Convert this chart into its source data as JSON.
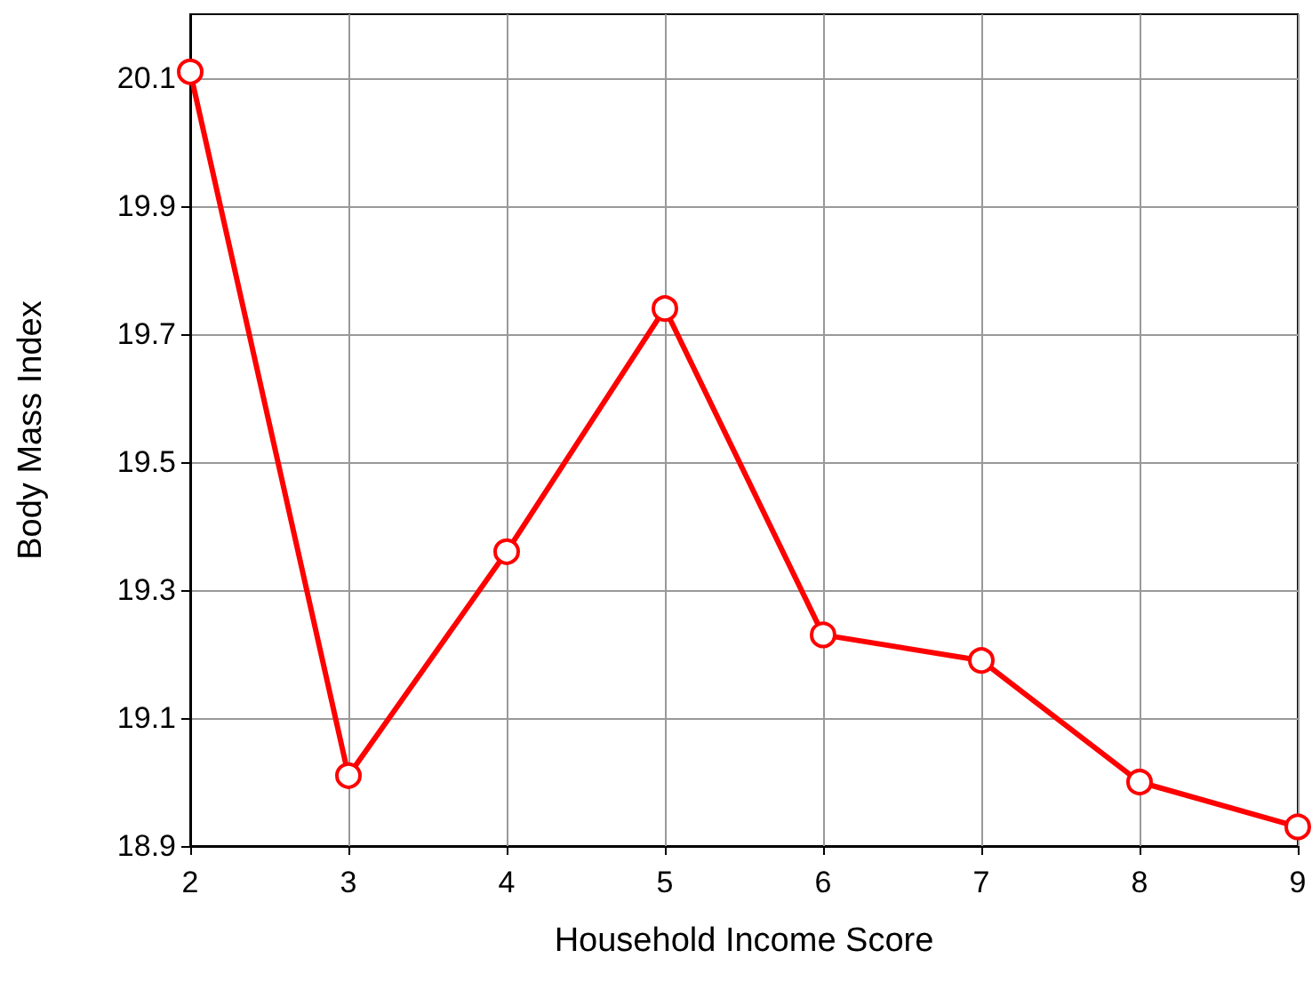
{
  "chart_data": {
    "type": "line",
    "xlabel": "Household Income Score",
    "ylabel": "Body Mass Index",
    "x": [
      2,
      3,
      4,
      5,
      6,
      7,
      8,
      9
    ],
    "series": [
      {
        "color": "#ff0000",
        "values": [
          20.11,
          19.01,
          19.36,
          19.74,
          19.23,
          19.19,
          19.0,
          18.93
        ]
      }
    ],
    "xlim": [
      2,
      9
    ],
    "xticks": [
      2,
      3,
      4,
      5,
      6,
      7,
      8,
      9
    ],
    "ylim": [
      18.9,
      20.2
    ],
    "yticks": [
      18.9,
      19.1,
      19.3,
      19.5,
      19.7,
      19.9,
      20.1
    ],
    "grid": true,
    "marker": "circle",
    "line_style": "solid"
  }
}
